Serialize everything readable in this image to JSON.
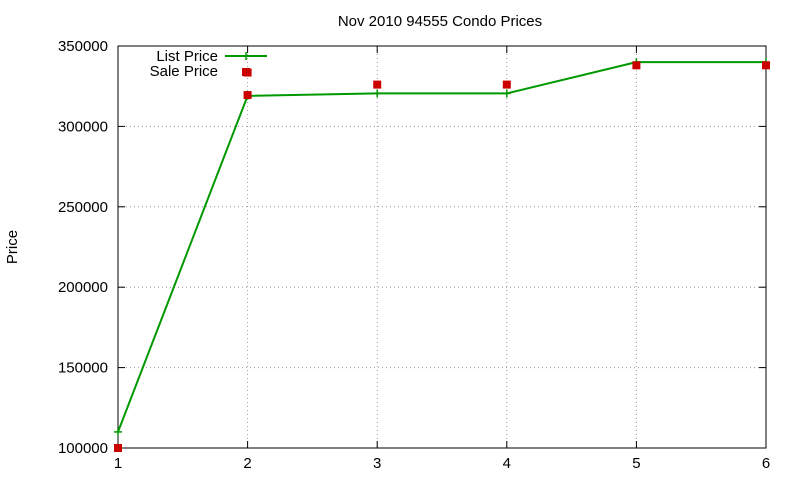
{
  "chart_data": {
    "type": "line",
    "title": "Nov 2010 94555 Condo Prices",
    "xlabel": "",
    "ylabel": "Price",
    "xlim": [
      1,
      6
    ],
    "ylim": [
      100000,
      350000
    ],
    "x_ticks": [
      1,
      2,
      3,
      4,
      5,
      6
    ],
    "y_ticks": [
      100000,
      150000,
      200000,
      250000,
      300000,
      350000
    ],
    "grid": true,
    "legend_position": "top-left",
    "series": [
      {
        "name": "List Price",
        "style": "linespoints",
        "color": "#009900",
        "x": [
          1,
          2,
          3,
          4,
          5,
          6
        ],
        "values": [
          110000,
          319000,
          320500,
          320500,
          340000,
          340000
        ]
      },
      {
        "name": "Sale Price",
        "style": "points",
        "color": "#cc0000",
        "x": [
          1,
          2,
          2,
          3,
          4,
          5,
          6
        ],
        "values": [
          100000,
          319500,
          333500,
          326000,
          326000,
          338000,
          338000
        ]
      }
    ]
  }
}
